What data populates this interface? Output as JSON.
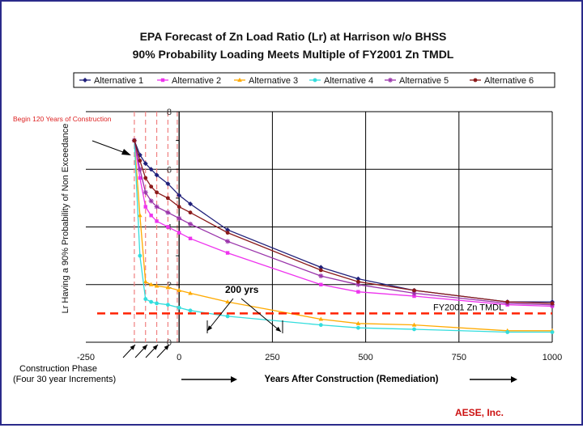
{
  "chart_data": {
    "type": "line",
    "title": "EPA Forecast of Zn Load Ratio (Lr) at Harrison w/o BHSS",
    "subtitle": "90% Probability Loading Meets Multiple of FY2001 Zn TMDL",
    "xlabel": "Years After Construction (Remediation)",
    "ylabel": "Lr Having a 90% Probability of Non Exceedance",
    "xlim": [
      -250,
      1000
    ],
    "ylim": [
      0,
      8
    ],
    "x_ticks": [
      "-250",
      "0",
      "250",
      "500",
      "750",
      "1000"
    ],
    "y_ticks": [
      "0",
      "2",
      "4",
      "6",
      "8"
    ],
    "grid": true,
    "legend_position": "top",
    "series": [
      {
        "name": "Alternative 1",
        "color": "#1f1f7a",
        "marker": "diamond",
        "x": [
          -120,
          -105,
          -90,
          -75,
          -60,
          -30,
          0,
          30,
          130,
          380,
          480,
          630,
          880,
          1000
        ],
        "y": [
          7.0,
          6.5,
          6.2,
          6.0,
          5.8,
          5.5,
          5.1,
          4.8,
          3.9,
          2.6,
          2.2,
          1.8,
          1.4,
          1.4
        ]
      },
      {
        "name": "Alternative 2",
        "color": "#ee33ee",
        "marker": "square",
        "x": [
          -120,
          -105,
          -90,
          -75,
          -60,
          -30,
          0,
          30,
          130,
          380,
          480,
          630,
          880,
          1000
        ],
        "y": [
          7.0,
          5.7,
          4.7,
          4.4,
          4.2,
          4.0,
          3.8,
          3.6,
          3.1,
          2.0,
          1.75,
          1.6,
          1.3,
          1.25
        ]
      },
      {
        "name": "Alternative 3",
        "color": "#ffaa00",
        "marker": "triangle",
        "x": [
          -120,
          -105,
          -90,
          -75,
          -60,
          -30,
          0,
          30,
          130,
          380,
          480,
          630,
          880,
          1000
        ],
        "y": [
          7.0,
          4.4,
          2.1,
          2.0,
          1.95,
          1.9,
          1.8,
          1.7,
          1.4,
          0.8,
          0.65,
          0.6,
          0.4,
          0.4
        ]
      },
      {
        "name": "Alternative 4",
        "color": "#33dddd",
        "marker": "circle",
        "x": [
          -120,
          -105,
          -90,
          -75,
          -60,
          -30,
          0,
          30,
          130,
          380,
          480,
          630,
          880,
          1000
        ],
        "y": [
          7.0,
          3.0,
          1.5,
          1.4,
          1.35,
          1.3,
          1.2,
          1.1,
          0.9,
          0.6,
          0.5,
          0.45,
          0.35,
          0.35
        ]
      },
      {
        "name": "Alternative 5",
        "color": "#9933aa",
        "marker": "star",
        "x": [
          -120,
          -105,
          -90,
          -75,
          -60,
          -30,
          0,
          30,
          130,
          380,
          480,
          630,
          880,
          1000
        ],
        "y": [
          7.0,
          6.0,
          5.2,
          4.9,
          4.7,
          4.5,
          4.3,
          4.1,
          3.5,
          2.3,
          2.0,
          1.7,
          1.35,
          1.3
        ]
      },
      {
        "name": "Alternative 6",
        "color": "#8b1a1a",
        "marker": "circle",
        "x": [
          -120,
          -105,
          -90,
          -75,
          -60,
          -30,
          0,
          30,
          130,
          380,
          480,
          630,
          880,
          1000
        ],
        "y": [
          7.0,
          6.3,
          5.7,
          5.4,
          5.2,
          5.0,
          4.7,
          4.5,
          3.8,
          2.5,
          2.1,
          1.8,
          1.4,
          1.35
        ]
      }
    ],
    "reference_line": {
      "label": "FY2001 Zn TMDL",
      "value": 1.0,
      "color": "#ff2200"
    },
    "construction_lines_x": [
      -120,
      -90,
      -60,
      -30,
      -5
    ],
    "annotations": {
      "begin": "Begin 120 Years of Construction",
      "span": "200 yrs",
      "construction_phase": "Construction Phase",
      "increments": "(Four 30 year Increments)"
    },
    "credit": "AESE, Inc."
  }
}
